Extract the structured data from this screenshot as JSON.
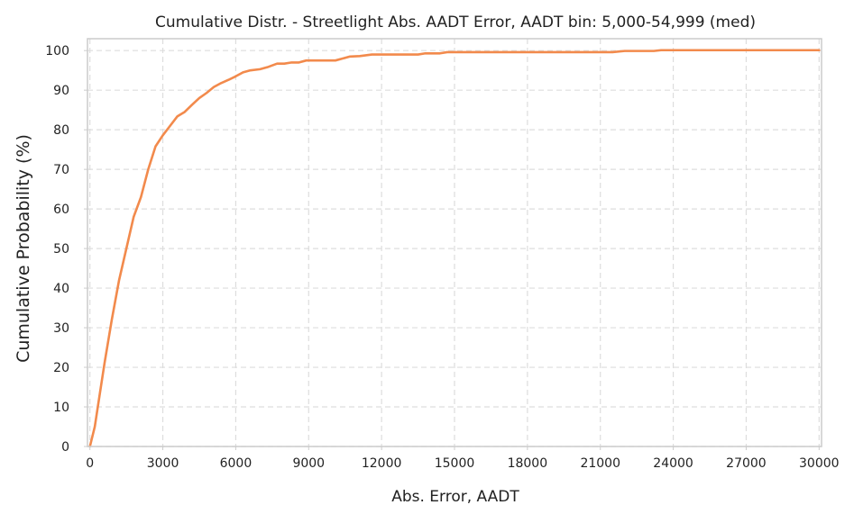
{
  "chart_data": {
    "type": "line",
    "title": "Cumulative Distr. - Streetlight Abs. AADT Error, AADT bin: 5,000-54,999 (med)",
    "xlabel": "Abs. Error, AADT",
    "ylabel": "Cumulative Probability (%)",
    "xlim": [
      -100,
      30100
    ],
    "ylim": [
      0,
      103
    ],
    "xticks": [
      0,
      3000,
      6000,
      9000,
      12000,
      15000,
      18000,
      21000,
      24000,
      27000,
      30000
    ],
    "xtick_labels": [
      "0",
      "3000",
      "6000",
      "9000",
      "12000",
      "15000",
      "18000",
      "21000",
      "24000",
      "27000",
      "30000"
    ],
    "yticks": [
      0,
      10,
      20,
      30,
      40,
      50,
      60,
      70,
      80,
      90,
      100
    ],
    "ytick_labels": [
      "0",
      "10",
      "20",
      "30",
      "40",
      "50",
      "60",
      "70",
      "80",
      "90",
      "100"
    ],
    "grid": true,
    "line_color": "#f28a4c",
    "series": [
      {
        "x": [
          0,
          200,
          400,
          600,
          900,
          1200,
          1500,
          1800,
          2100,
          2400,
          2700,
          3000,
          3300,
          3600,
          3900,
          4200,
          4500,
          4800,
          5100,
          5400,
          5700,
          6000,
          6300,
          6600,
          7000,
          7300,
          7700,
          8000,
          8300,
          8600,
          8900,
          9500,
          10100,
          10700,
          11100,
          11600,
          12500,
          13500,
          13800,
          14400,
          14700,
          15500,
          17000,
          19000,
          21000,
          21500,
          22000,
          23200,
          23500,
          25000,
          27000,
          30000
        ],
        "y": [
          0,
          5,
          13,
          21,
          32,
          42,
          50,
          58,
          63,
          70,
          75.8,
          78.6,
          81,
          83.4,
          84.5,
          86.3,
          88,
          89.3,
          90.8,
          91.8,
          92.6,
          93.5,
          94.5,
          95,
          95.3,
          95.8,
          96.7,
          96.7,
          97,
          97,
          97.5,
          97.5,
          97.5,
          98.5,
          98.6,
          99,
          99,
          99,
          99.3,
          99.3,
          99.6,
          99.6,
          99.6,
          99.6,
          99.6,
          99.6,
          99.9,
          99.9,
          100.1,
          100.1,
          100.1,
          100.1
        ]
      }
    ]
  }
}
